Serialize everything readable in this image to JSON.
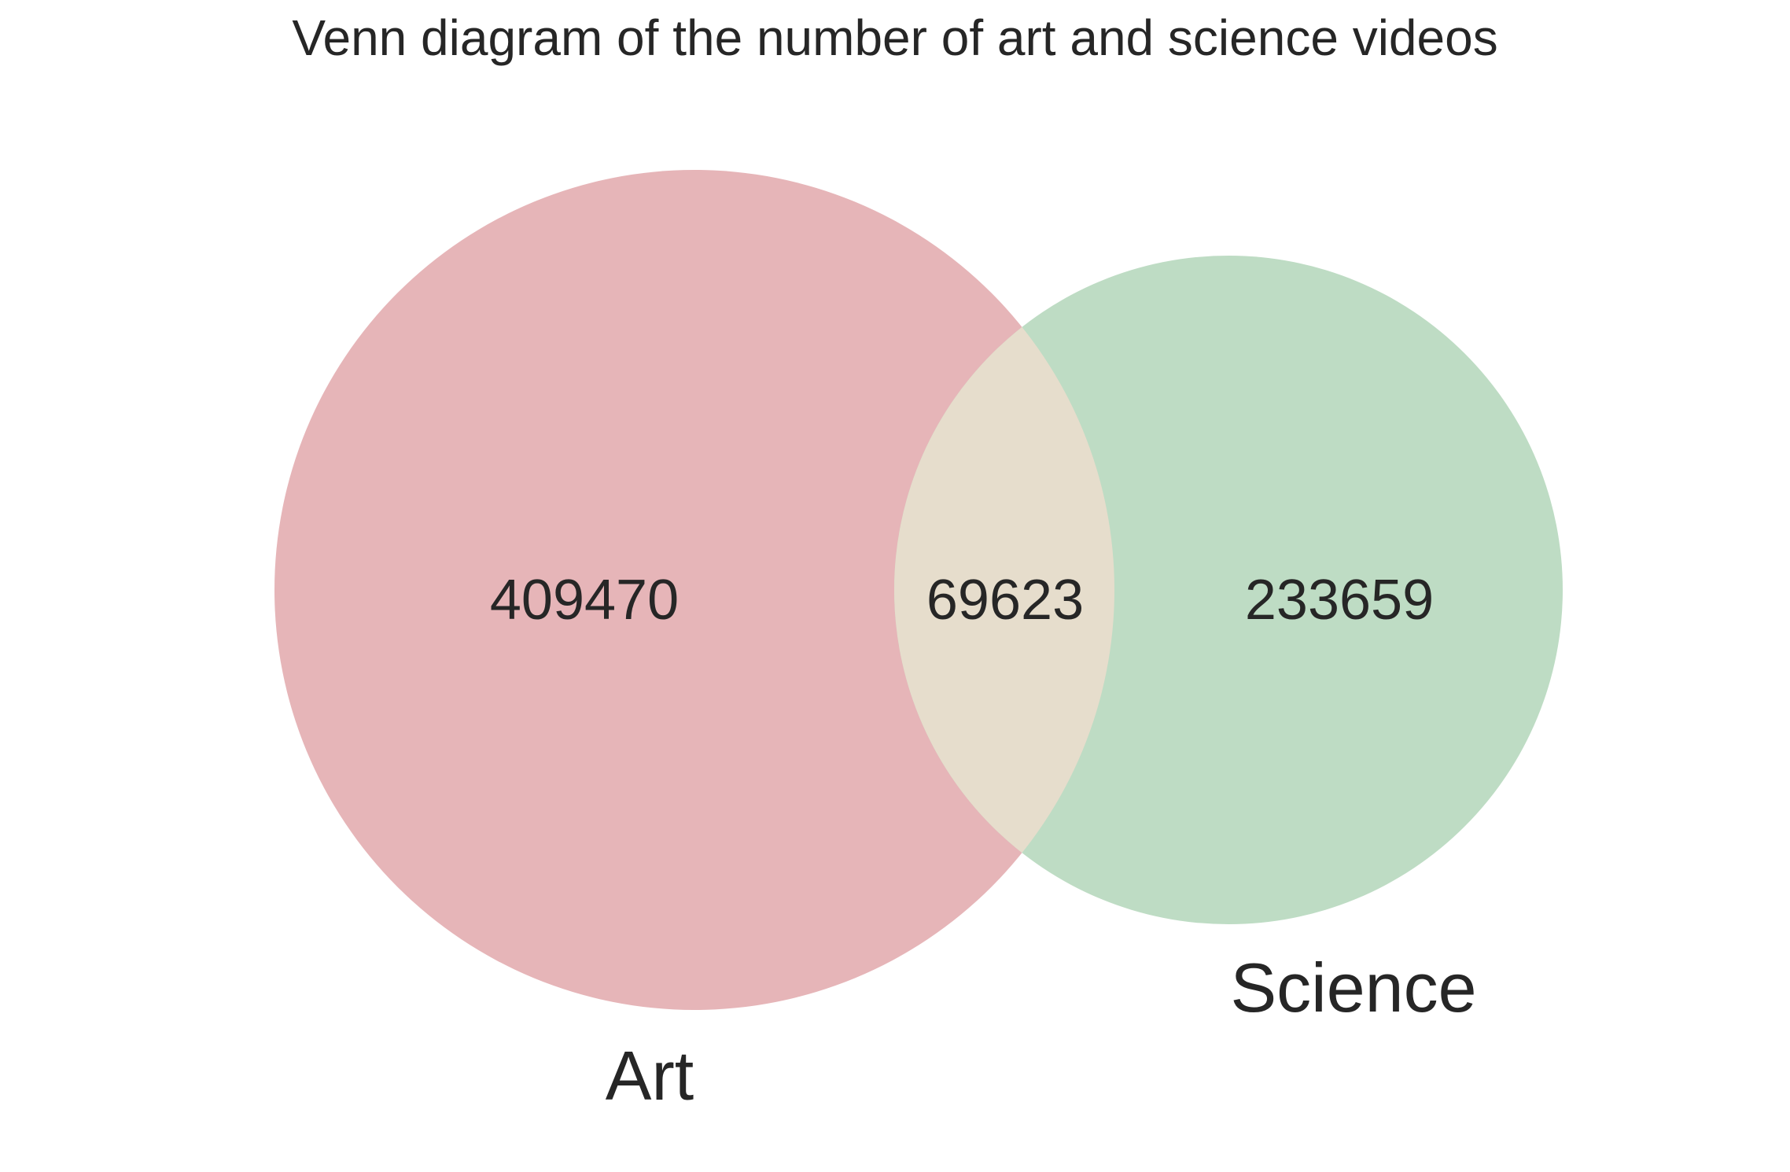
{
  "title": "Venn diagram of the number of art and science videos",
  "sets": [
    {
      "name": "Art",
      "only_count": "409470",
      "color": "#e6b5b8"
    },
    {
      "name": "Science",
      "only_count": "233659",
      "color": "#bedcc4"
    }
  ],
  "intersection": {
    "count": "69623",
    "color": "#e6ddcc"
  }
}
